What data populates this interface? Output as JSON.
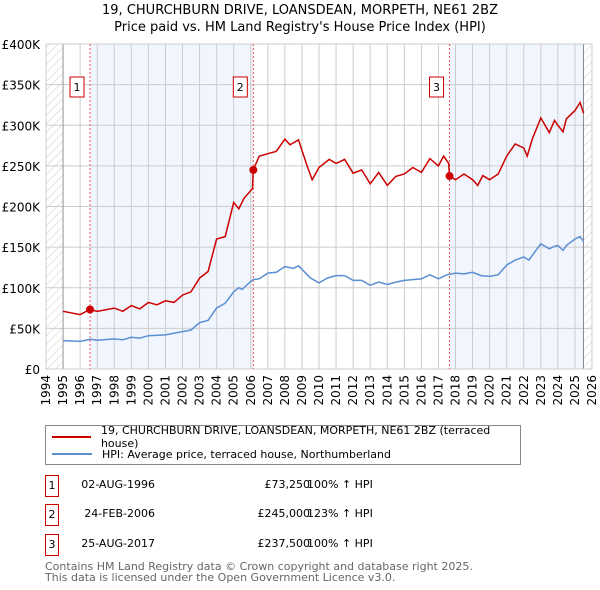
{
  "chart_data": {
    "type": "line",
    "title": "19, CHURCHBURN DRIVE, LOANSDEAN, MORPETH, NE61 2BZ",
    "subtitle": "Price paid vs. HM Land Registry's House Price Index (HPI)",
    "xlim": [
      1994,
      2026
    ],
    "ylim": [
      0,
      400000
    ],
    "y_ticks": [
      0,
      50000,
      100000,
      150000,
      200000,
      250000,
      300000,
      350000,
      400000
    ],
    "y_tick_labels": [
      "£0",
      "£50K",
      "£100K",
      "£150K",
      "£200K",
      "£250K",
      "£300K",
      "£350K",
      "£400K"
    ],
    "x_ticks": [
      "1994",
      "1995",
      "1996",
      "1997",
      "1998",
      "1999",
      "2000",
      "2001",
      "2002",
      "2003",
      "2004",
      "2005",
      "2006",
      "2007",
      "2008",
      "2009",
      "2010",
      "2011",
      "2012",
      "2013",
      "2014",
      "2015",
      "2016",
      "2017",
      "2018",
      "2019",
      "2020",
      "2021",
      "2022",
      "2023",
      "2024",
      "2025",
      "2026"
    ],
    "grid": true,
    "series": [
      {
        "name": "19, CHURCHBURN DRIVE, LOANSDEAN, MORPETH, NE61 2BZ (terraced house)",
        "color": "#cc0000",
        "x": [
          1995,
          1996,
          1996.58,
          1997,
          1998,
          1998.5,
          1999,
          1999.5,
          2000,
          2000.5,
          2001,
          2001.5,
          2002,
          2002.5,
          2003,
          2003.5,
          2004,
          2004.5,
          2005,
          2005.3,
          2005.6,
          2006.1,
          2006.15,
          2006.5,
          2007,
          2007.5,
          2008,
          2008.3,
          2008.8,
          2009.3,
          2009.6,
          2010,
          2010.6,
          2011,
          2011.5,
          2012,
          2012.5,
          2013,
          2013.5,
          2014,
          2014.5,
          2015,
          2015.5,
          2016,
          2016.5,
          2017,
          2017.3,
          2017.6,
          2017.65,
          2018,
          2018.5,
          2019,
          2019.3,
          2019.6,
          2020,
          2020.5,
          2021,
          2021.5,
          2022,
          2022.2,
          2022.5,
          2023,
          2023.5,
          2023.8,
          2024,
          2024.3,
          2024.5,
          2025,
          2025.3,
          2025.5
        ],
        "y": [
          71000,
          67000,
          73250,
          71000,
          75000,
          71000,
          78000,
          74000,
          82000,
          79000,
          84000,
          82000,
          91000,
          95000,
          112000,
          120000,
          160000,
          163000,
          205000,
          197000,
          210000,
          222000,
          245000,
          262000,
          265000,
          268000,
          283000,
          276000,
          282000,
          250000,
          233000,
          248000,
          258000,
          253000,
          258000,
          241000,
          245000,
          228000,
          242000,
          226000,
          237000,
          240000,
          248000,
          242000,
          259000,
          250000,
          262000,
          253000,
          237500,
          233000,
          240000,
          233000,
          226000,
          238000,
          233000,
          240000,
          262000,
          277000,
          272000,
          262000,
          283000,
          309000,
          291000,
          306000,
          300000,
          292000,
          308000,
          318000,
          328000,
          315000
        ]
      },
      {
        "name": "HPI: Average price, terraced house, Northumberland",
        "color": "#5b8fd4",
        "x": [
          1995,
          1996,
          1996.6,
          1997,
          1998,
          1998.5,
          1999,
          1999.5,
          2000,
          2001,
          2002,
          2002.5,
          2003,
          2003.5,
          2004,
          2004.5,
          2005,
          2005.3,
          2005.5,
          2006,
          2006.15,
          2006.5,
          2007,
          2007.5,
          2008,
          2008.5,
          2008.8,
          2009.5,
          2010,
          2010.5,
          2011,
          2011.5,
          2012,
          2012.5,
          2013,
          2013.5,
          2014,
          2014.5,
          2015,
          2015.5,
          2016,
          2016.5,
          2017,
          2017.5,
          2018,
          2018.5,
          2019,
          2019.5,
          2020,
          2020.5,
          2021,
          2021.5,
          2022,
          2022.3,
          2022.5,
          2023,
          2023.5,
          2023.8,
          2024,
          2024.3,
          2024.5,
          2025,
          2025.3,
          2025.5
        ],
        "y": [
          35000,
          34000,
          36500,
          35500,
          37000,
          36000,
          39000,
          38000,
          41000,
          42000,
          46000,
          48000,
          57000,
          60000,
          75000,
          81000,
          95000,
          100000,
          98000,
          108000,
          110000,
          111000,
          118000,
          119000,
          126000,
          124000,
          127000,
          112000,
          106000,
          112000,
          115000,
          115000,
          109000,
          109000,
          103000,
          107000,
          104000,
          107000,
          109000,
          110000,
          111000,
          116000,
          111000,
          116000,
          118000,
          117000,
          119000,
          115000,
          114000,
          116000,
          128000,
          134000,
          138000,
          134000,
          140000,
          154000,
          148000,
          151000,
          152000,
          146000,
          152000,
          160000,
          163000,
          157000
        ]
      }
    ],
    "sales": [
      {
        "num": "1",
        "x": 1996.58,
        "y": 73250,
        "date": "02-AUG-1996",
        "price": "£73,250",
        "hpi": "100% ↑ HPI"
      },
      {
        "num": "2",
        "x": 2006.15,
        "y": 245000,
        "date": "24-FEB-2006",
        "price": "£245,000",
        "hpi": "123% ↑ HPI"
      },
      {
        "num": "3",
        "x": 2017.65,
        "y": 237500,
        "date": "25-AUG-2017",
        "price": "£237,500",
        "hpi": "100% ↑ HPI"
      }
    ],
    "data_end": 2025.5,
    "legend_placement": "below"
  },
  "footer": {
    "line1": "Contains HM Land Registry data © Crown copyright and database right 2025.",
    "line2": "This data is licensed under the Open Government Licence v3.0."
  }
}
